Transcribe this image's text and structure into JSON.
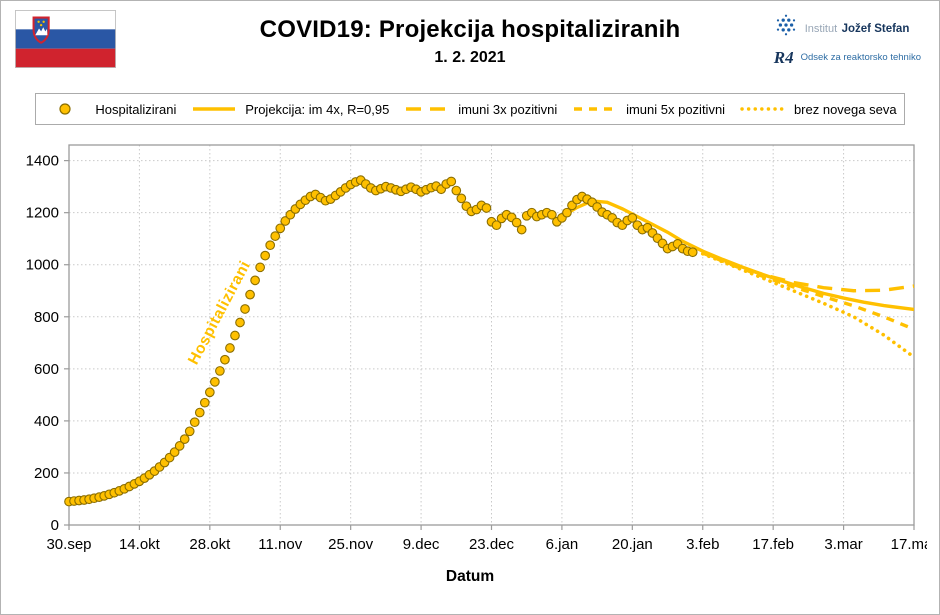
{
  "page": {
    "title": "COVID19: Projekcija hospitaliziranih",
    "subtitle": "1. 2. 2021"
  },
  "logos": {
    "ijs": {
      "prefix": "Institut",
      "name": "Jožef Stefan"
    },
    "r4": {
      "mark": "R4",
      "dept": "Odsek za reaktorsko tehniko"
    }
  },
  "legend": {
    "items": [
      {
        "label": "Hospitalizirani",
        "swatch": "marker"
      },
      {
        "label": "Projekcija: im 4x, R=0,95",
        "swatch": "solid-line"
      },
      {
        "label": "imuni 3x pozitivni",
        "swatch": "long-dash-line"
      },
      {
        "label": "imuni 5x pozitivni",
        "swatch": "dash-line"
      },
      {
        "label": "brez novega seva",
        "swatch": "dot-line"
      }
    ]
  },
  "chart_data": {
    "type": "scatter",
    "title": "COVID19: Projekcija hospitaliziranih",
    "subtitle": "1. 2. 2021",
    "xlabel": "Datum",
    "inline_label": "Hospitalizirani",
    "xlim": [
      0,
      168
    ],
    "ylim": [
      0,
      1460
    ],
    "y_ticks": [
      0,
      200,
      400,
      600,
      800,
      1000,
      1200,
      1400
    ],
    "x_ticks": [
      0,
      14,
      28,
      42,
      56,
      70,
      84,
      98,
      112,
      126,
      140,
      154,
      168
    ],
    "x_tick_labels": [
      "30.sep",
      "14.okt",
      "28.okt",
      "11.nov",
      "25.nov",
      "9.dec",
      "23.dec",
      "6.jan",
      "20.jan",
      "3.feb",
      "17.feb",
      "3.mar",
      "17.mar"
    ],
    "grid": true,
    "legend_position": "top",
    "colors": {
      "accent": "#FFC000",
      "marker_stroke": "#8a6d00"
    },
    "series": [
      {
        "name": "Projekcija: im 4x, R=0,95",
        "type": "line",
        "dash": "",
        "width": 3.4,
        "points": [
          [
            98,
            1185
          ],
          [
            101,
            1220
          ],
          [
            104,
            1245
          ],
          [
            107,
            1240
          ],
          [
            110,
            1215
          ],
          [
            113,
            1185
          ],
          [
            116,
            1155
          ],
          [
            119,
            1125
          ],
          [
            122,
            1090
          ],
          [
            126,
            1052
          ],
          [
            130,
            1020
          ],
          [
            134,
            990
          ],
          [
            138,
            962
          ],
          [
            142,
            936
          ],
          [
            146,
            912
          ],
          [
            150,
            890
          ],
          [
            154,
            872
          ],
          [
            158,
            856
          ],
          [
            162,
            843
          ],
          [
            168,
            828
          ]
        ]
      },
      {
        "name": "imuni 3x pozitivni",
        "type": "line",
        "dash": "15 9",
        "width": 3.4,
        "points": [
          [
            126,
            1048
          ],
          [
            132,
            1000
          ],
          [
            138,
            962
          ],
          [
            144,
            932
          ],
          [
            150,
            912
          ],
          [
            156,
            900
          ],
          [
            162,
            902
          ],
          [
            168,
            918
          ]
        ]
      },
      {
        "name": "imuni 5x pozitivni",
        "type": "line",
        "dash": "8 7",
        "width": 3.4,
        "points": [
          [
            126,
            1045
          ],
          [
            132,
            998
          ],
          [
            138,
            955
          ],
          [
            144,
            915
          ],
          [
            150,
            878
          ],
          [
            156,
            842
          ],
          [
            162,
            800
          ],
          [
            168,
            752
          ]
        ]
      },
      {
        "name": "brez novega seva",
        "type": "line",
        "dash": "0.1 6.5",
        "linecap": "round",
        "width": 3.6,
        "points": [
          [
            126,
            1042
          ],
          [
            132,
            995
          ],
          [
            138,
            948
          ],
          [
            144,
            900
          ],
          [
            150,
            852
          ],
          [
            156,
            800
          ],
          [
            162,
            730
          ],
          [
            168,
            645
          ]
        ]
      },
      {
        "name": "Hospitalizirani",
        "type": "scatter",
        "x_start": 0,
        "x_step": 1,
        "values": [
          90,
          92,
          94,
          96,
          99,
          103,
          107,
          112,
          118,
          124,
          131,
          139,
          148,
          158,
          168,
          180,
          193,
          207,
          223,
          240,
          259,
          280,
          304,
          330,
          360,
          395,
          432,
          470,
          510,
          550,
          592,
          635,
          680,
          728,
          778,
          830,
          885,
          940,
          990,
          1035,
          1075,
          1110,
          1140,
          1168,
          1192,
          1214,
          1232,
          1248,
          1262,
          1270,
          1258,
          1246,
          1252,
          1266,
          1280,
          1295,
          1308,
          1318,
          1325,
          1310,
          1295,
          1285,
          1292,
          1300,
          1295,
          1288,
          1282,
          1290,
          1298,
          1290,
          1280,
          1288,
          1296,
          1302,
          1290,
          1310,
          1320,
          1285,
          1255,
          1225,
          1205,
          1212,
          1228,
          1218,
          1165,
          1152,
          1178,
          1192,
          1182,
          1162,
          1135,
          1188,
          1200,
          1185,
          1192,
          1200,
          1192,
          1165,
          1180,
          1200,
          1228,
          1250,
          1262,
          1252,
          1240,
          1222,
          1202,
          1192,
          1180,
          1162,
          1152,
          1170,
          1180,
          1152,
          1135,
          1142,
          1122,
          1102,
          1082,
          1062,
          1070,
          1080,
          1062,
          1052,
          1048
        ]
      }
    ]
  }
}
